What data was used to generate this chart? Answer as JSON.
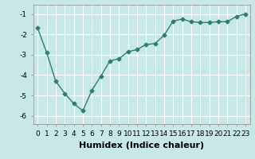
{
  "x": [
    0,
    1,
    2,
    3,
    4,
    5,
    6,
    7,
    8,
    9,
    10,
    11,
    12,
    13,
    14,
    15,
    16,
    17,
    18,
    19,
    20,
    21,
    22,
    23
  ],
  "y": [
    -1.7,
    -2.9,
    -4.3,
    -4.9,
    -5.4,
    -5.75,
    -4.75,
    -4.05,
    -3.3,
    -3.2,
    -2.85,
    -2.75,
    -2.5,
    -2.45,
    -2.05,
    -1.35,
    -1.25,
    -1.38,
    -1.42,
    -1.42,
    -1.38,
    -1.38,
    -1.12,
    -1.0
  ],
  "line_color": "#2e7d6e",
  "marker": "D",
  "marker_size": 2.5,
  "bg_color": "#c8e8e8",
  "grid_color": "#ffffff",
  "xlabel": "Humidex (Indice chaleur)",
  "xlim": [
    -0.5,
    23.5
  ],
  "ylim": [
    -6.4,
    -0.55
  ],
  "yticks": [
    -6,
    -5,
    -4,
    -3,
    -2,
    -1
  ],
  "xticks": [
    0,
    1,
    2,
    3,
    4,
    5,
    6,
    7,
    8,
    9,
    10,
    11,
    12,
    13,
    14,
    15,
    16,
    17,
    18,
    19,
    20,
    21,
    22,
    23
  ],
  "tick_fontsize": 6.5,
  "xlabel_fontsize": 8,
  "line_width": 1.0
}
